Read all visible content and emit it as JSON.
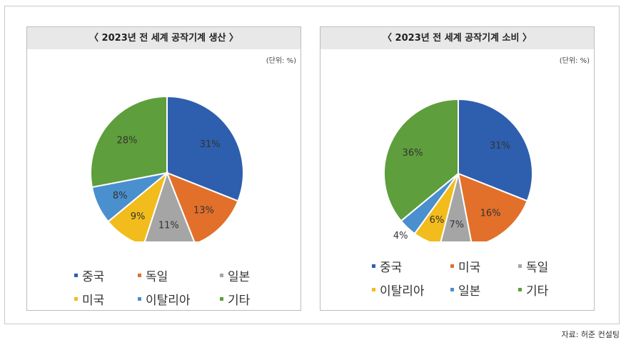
{
  "source": "자료: 허준 컨설팅",
  "colors": {
    "중국": "#2e5fae",
    "독일": "#e2702a",
    "일본_gray": "#a5a5a5",
    "미국_yellow": "#f2bc1c",
    "blue_light": "#4a8fce",
    "기타": "#5e9e3c"
  },
  "chart_data": [
    {
      "type": "pie",
      "title": "〈 2023년 전 세계 공작기계 생산 〉",
      "unit": "(단위: %)",
      "slices": [
        {
          "label": "중국",
          "value": 31,
          "display": "31%",
          "color": "#2e5fae"
        },
        {
          "label": "독일",
          "value": 13,
          "display": "13%",
          "color": "#e2702a"
        },
        {
          "label": "일본",
          "value": 11,
          "display": "11%",
          "color": "#a5a5a5"
        },
        {
          "label": "미국",
          "value": 9,
          "display": "9%",
          "color": "#f2bc1c"
        },
        {
          "label": "이탈리아",
          "value": 8,
          "display": "8%",
          "color": "#4a8fce"
        },
        {
          "label": "기타",
          "value": 28,
          "display": "28%",
          "color": "#5e9e3c"
        }
      ],
      "legend": [
        "중국",
        "독일",
        "일본",
        "미국",
        "이탈리아",
        "기타"
      ]
    },
    {
      "type": "pie",
      "title": "〈 2023년 전 세계 공작기계 소비 〉",
      "unit": "(단위: %)",
      "slices": [
        {
          "label": "중국",
          "value": 31,
          "display": "31%",
          "color": "#2e5fae"
        },
        {
          "label": "미국",
          "value": 16,
          "display": "16%",
          "color": "#e2702a"
        },
        {
          "label": "독일",
          "value": 7,
          "display": "7%",
          "color": "#a5a5a5"
        },
        {
          "label": "이탈리아",
          "value": 6,
          "display": "6%",
          "color": "#f2bc1c"
        },
        {
          "label": "일본",
          "value": 4,
          "display": "4%",
          "color": "#4a8fce"
        },
        {
          "label": "기타",
          "value": 36,
          "display": "36%",
          "color": "#5e9e3c"
        }
      ],
      "legend": [
        "중국",
        "미국",
        "독일",
        "이탈리아",
        "일본",
        "기타"
      ]
    }
  ]
}
